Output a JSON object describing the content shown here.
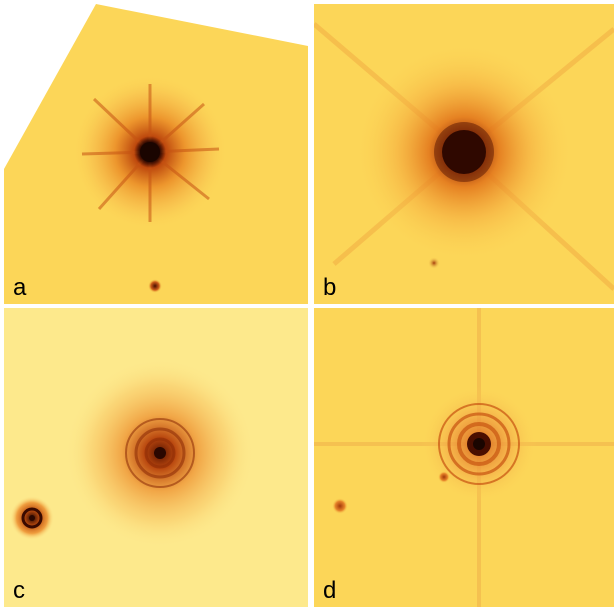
{
  "panels": [
    {
      "label": "a"
    },
    {
      "label": "b"
    },
    {
      "label": "c"
    },
    {
      "label": "d"
    }
  ],
  "colors": {
    "background_white": "#ffffff",
    "field_yellow": "#fcd658",
    "field_yellow_light": "#fde98c",
    "orange": "#f08a1c",
    "dark_core": "#1a0500",
    "label_text": "#000000"
  }
}
